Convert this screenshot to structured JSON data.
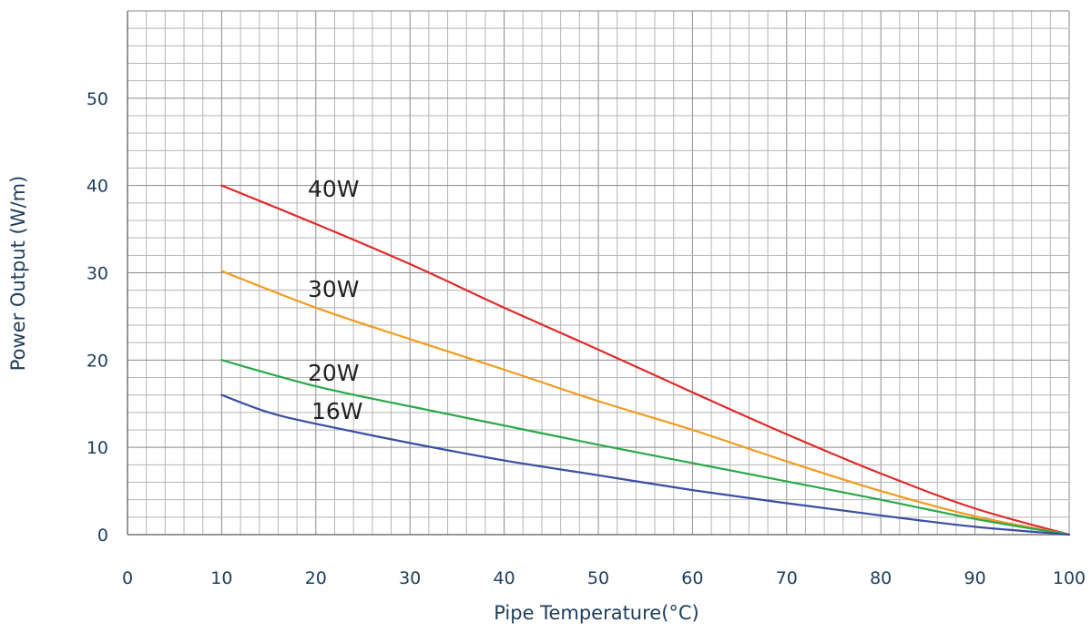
{
  "chart_data": {
    "type": "line",
    "title": "",
    "xlabel": "Pipe Temperature(°C)",
    "ylabel": "Power Output (W/m)",
    "xlim": [
      0,
      100
    ],
    "ylim": [
      0,
      60
    ],
    "x_ticks": [
      "0",
      "10",
      "20",
      "30",
      "40",
      "50",
      "60",
      "70",
      "80",
      "90",
      "100"
    ],
    "y_ticks": [
      "0",
      "10",
      "20",
      "30",
      "40",
      "50"
    ],
    "grid": true,
    "series": [
      {
        "name": "40W",
        "color": "#e02a2a",
        "x": [
          10,
          20,
          30,
          40,
          50,
          60,
          70,
          80,
          90,
          100
        ],
        "y": [
          40,
          35.6,
          31,
          26,
          21.2,
          16.3,
          11.5,
          7,
          3,
          0
        ]
      },
      {
        "name": "30W",
        "color": "#f39a1f",
        "x": [
          10,
          20,
          30,
          40,
          50,
          60,
          70,
          80,
          90,
          100
        ],
        "y": [
          30.2,
          26,
          22.4,
          18.9,
          15.3,
          12,
          8.4,
          5,
          2.1,
          0
        ]
      },
      {
        "name": "20W",
        "color": "#2aa84a",
        "x": [
          10,
          20,
          30,
          40,
          50,
          60,
          70,
          80,
          90,
          100
        ],
        "y": [
          20,
          17,
          14.7,
          12.5,
          10.3,
          8.2,
          6.1,
          4,
          1.8,
          0
        ]
      },
      {
        "name": "16W",
        "color": "#3a4ea3",
        "x": [
          10,
          15,
          20,
          30,
          40,
          50,
          60,
          70,
          80,
          90,
          100
        ],
        "y": [
          16,
          14,
          12.7,
          10.5,
          8.5,
          6.8,
          5.1,
          3.6,
          2.2,
          0.9,
          0
        ]
      }
    ]
  }
}
